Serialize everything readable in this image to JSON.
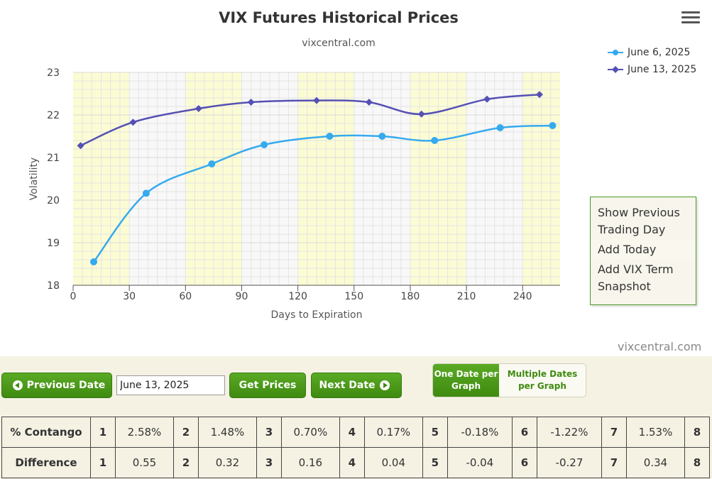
{
  "chart_data": {
    "type": "line",
    "title": "VIX Futures Historical Prices",
    "subtitle": "vixcentral.com",
    "xlabel": "Days to Expiration",
    "ylabel": "Volatility",
    "xlim": [
      0,
      260
    ],
    "ylim": [
      18,
      23
    ],
    "x_ticks": [
      0,
      30,
      60,
      90,
      120,
      150,
      180,
      210,
      240
    ],
    "y_ticks": [
      18,
      19,
      20,
      21,
      22,
      23
    ],
    "grid": true,
    "legend_position": "top-right",
    "band_color": "#fcfcd4",
    "bands": [
      [
        0,
        30
      ],
      [
        60,
        90
      ],
      [
        120,
        150
      ],
      [
        180,
        210
      ],
      [
        240,
        260
      ]
    ],
    "series": [
      {
        "name": "June 6, 2025",
        "color": "#35aaee",
        "marker": "circle",
        "x": [
          11,
          39,
          74,
          102,
          137,
          165,
          193,
          228,
          256
        ],
        "y": [
          18.55,
          20.16,
          20.85,
          21.3,
          21.5,
          21.5,
          21.4,
          21.7,
          21.75
        ]
      },
      {
        "name": "June 13, 2025",
        "color": "#5550b4",
        "marker": "diamond",
        "x": [
          4,
          32,
          67,
          95,
          130,
          158,
          186,
          221,
          249
        ],
        "y": [
          21.28,
          21.83,
          22.15,
          22.3,
          22.34,
          22.3,
          22.02,
          22.37,
          22.48
        ]
      }
    ]
  },
  "menu": {
    "icon": "hamburger-menu-icon",
    "items": [
      "Show Previous Trading Day",
      "Add Today",
      "Add VIX Term Snapshot"
    ]
  },
  "credit": "vixcentral.com",
  "controls": {
    "prev_label": "Previous Date",
    "date_value": "June 13, 2025",
    "get_label": "Get Prices",
    "next_label": "Next Date",
    "mode_one": "One Date per Graph",
    "mode_multi": "Multiple Dates per Graph"
  },
  "stats": {
    "contango_label": "% Contango",
    "difference_label": "Difference",
    "months": [
      "1",
      "2",
      "3",
      "4",
      "5",
      "6",
      "7",
      "8"
    ],
    "contango": [
      "2.58%",
      "1.48%",
      "0.70%",
      "0.17%",
      "-0.18%",
      "-1.22%",
      "1.53%"
    ],
    "difference": [
      "0.55",
      "0.32",
      "0.16",
      "0.04",
      "-0.04",
      "-0.27",
      "0.34"
    ]
  }
}
